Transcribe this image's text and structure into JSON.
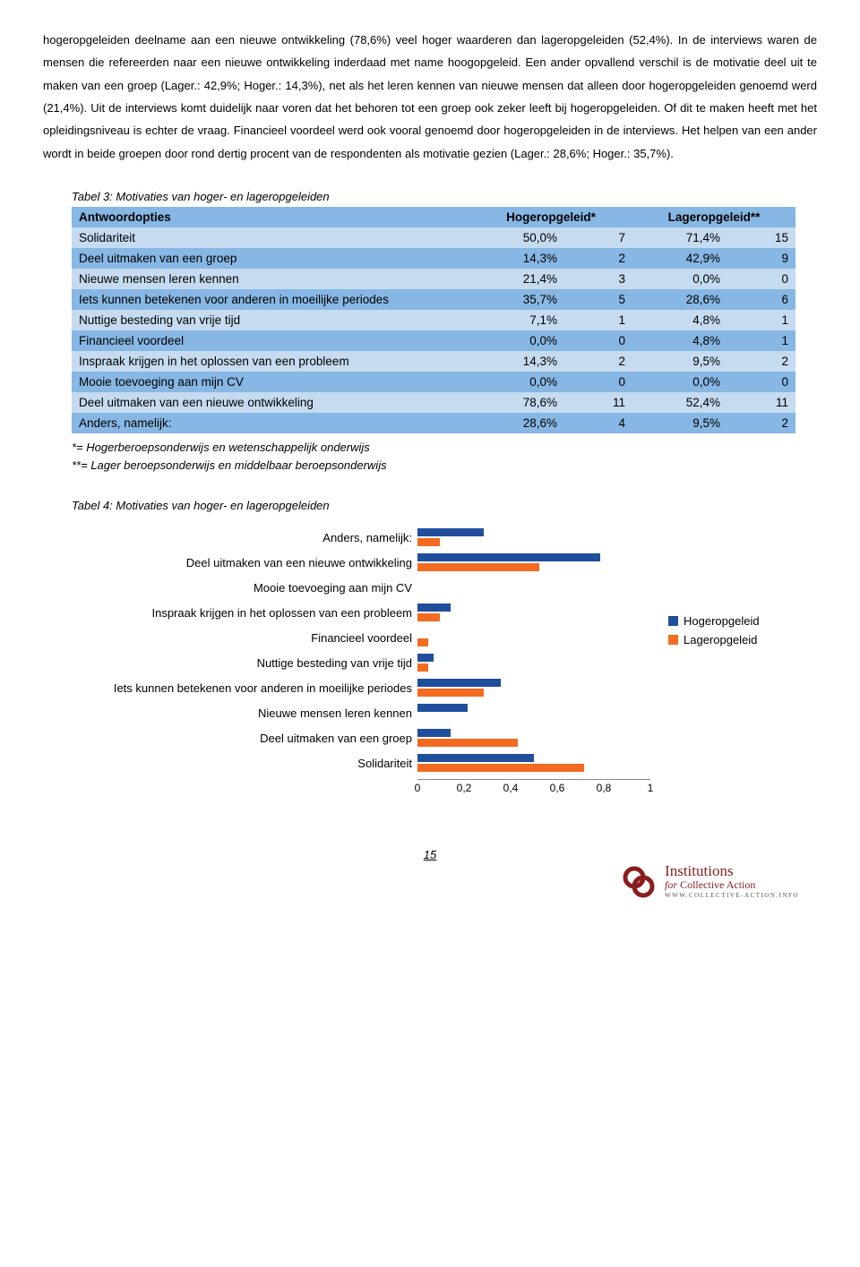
{
  "colors": {
    "table_header_bg": "#87b7e4",
    "table_row_dark": "#87b7e4",
    "table_row_light": "#c6dbf0",
    "bar_blue": "#1f4e9c",
    "bar_orange": "#f26b21",
    "logo_color": "#8a1e1e"
  },
  "body_paragraph": "hogeropgeleiden deelname aan een nieuwe ontwikkeling (78,6%) veel hoger waarderen dan lageropgeleiden (52,4%). In de interviews waren de mensen die refereerden naar een nieuwe ontwikkeling inderdaad met name hoogopgeleid. Een ander opvallend verschil is de motivatie deel uit te maken van een groep (Lager.: 42,9%; Hoger.: 14,3%), net als het leren kennen van nieuwe mensen dat alleen door hogeropgeleiden genoemd werd (21,4%). Uit de interviews komt duidelijk naar voren dat het behoren tot een groep ook zeker leeft bij hogeropgeleiden. Of dit te maken heeft met het opleidingsniveau is echter de vraag. Financieel voordeel werd ook vooral genoemd door hogeropgeleiden in de interviews. Het helpen van een ander wordt in beide groepen door rond dertig procent van de respondenten als motivatie gezien (Lager.: 28,6%; Hoger.: 35,7%).",
  "table3": {
    "caption": "Tabel 3: Motivaties van hoger- en lageropgeleiden",
    "headers": {
      "col0": "Antwoordopties",
      "col1": "Hogeropgeleid*",
      "col2": "Lageropgeleid**"
    },
    "rows": [
      {
        "shade": "light",
        "label": "Solidariteit",
        "h_pct": "50,0%",
        "h_n": "7",
        "l_pct": "71,4%",
        "l_n": "15"
      },
      {
        "shade": "dark",
        "label": "Deel uitmaken van een groep",
        "h_pct": "14,3%",
        "h_n": "2",
        "l_pct": "42,9%",
        "l_n": "9"
      },
      {
        "shade": "light",
        "label": "Nieuwe mensen leren kennen",
        "h_pct": "21,4%",
        "h_n": "3",
        "l_pct": "0,0%",
        "l_n": "0"
      },
      {
        "shade": "dark",
        "label": "Iets kunnen betekenen voor anderen in moeilijke periodes",
        "h_pct": "35,7%",
        "h_n": "5",
        "l_pct": "28,6%",
        "l_n": "6"
      },
      {
        "shade": "light",
        "label": "Nuttige besteding van vrije tijd",
        "h_pct": "7,1%",
        "h_n": "1",
        "l_pct": "4,8%",
        "l_n": "1"
      },
      {
        "shade": "dark",
        "label": "Financieel voordeel",
        "h_pct": "0,0%",
        "h_n": "0",
        "l_pct": "4,8%",
        "l_n": "1"
      },
      {
        "shade": "light",
        "label": "Inspraak krijgen in het oplossen van een probleem",
        "h_pct": "14,3%",
        "h_n": "2",
        "l_pct": "9,5%",
        "l_n": "2"
      },
      {
        "shade": "dark",
        "label": "Mooie toevoeging aan mijn CV",
        "h_pct": "0,0%",
        "h_n": "0",
        "l_pct": "0,0%",
        "l_n": "0"
      },
      {
        "shade": "light",
        "label": "Deel uitmaken van een nieuwe ontwikkeling",
        "h_pct": "78,6%",
        "h_n": "11",
        "l_pct": "52,4%",
        "l_n": "11"
      },
      {
        "shade": "dark",
        "label": "Anders, namelijk:",
        "h_pct": "28,6%",
        "h_n": "4",
        "l_pct": "9,5%",
        "l_n": "2"
      }
    ],
    "footnote1": "*= Hogerberoepsonderwijs en wetenschappelijk onderwijs",
    "footnote2": "**= Lager beroepsonderwijs en middelbaar beroepsonderwijs"
  },
  "table4_caption": "Tabel 4: Motivaties van hoger- en lageropgeleiden",
  "chart": {
    "type": "grouped-horizontal-bar",
    "x_min": 0,
    "x_max": 1,
    "x_ticks": [
      "0",
      "0,2",
      "0,4",
      "0,6",
      "0,8",
      "1"
    ],
    "series_names": {
      "hoger": "Hogeropgeleid",
      "lager": "Lageropgeleid"
    },
    "series_colors": {
      "hoger": "#1f4e9c",
      "lager": "#f26b21"
    },
    "rows": [
      {
        "label": "Anders, namelijk:",
        "hoger": 0.286,
        "lager": 0.095
      },
      {
        "label": "Deel uitmaken van een nieuwe ontwikkeling",
        "hoger": 0.786,
        "lager": 0.524
      },
      {
        "label": "Mooie toevoeging aan mijn CV",
        "hoger": 0.0,
        "lager": 0.0
      },
      {
        "label": "Inspraak krijgen in het oplossen van een probleem",
        "hoger": 0.143,
        "lager": 0.095
      },
      {
        "label": "Financieel voordeel",
        "hoger": 0.0,
        "lager": 0.048
      },
      {
        "label": "Nuttige besteding van vrije tijd",
        "hoger": 0.071,
        "lager": 0.048
      },
      {
        "label": "Iets kunnen betekenen voor anderen in moeilijke periodes",
        "hoger": 0.357,
        "lager": 0.286
      },
      {
        "label": "Nieuwe mensen leren kennen",
        "hoger": 0.214,
        "lager": 0.0
      },
      {
        "label": "Deel uitmaken van een groep",
        "hoger": 0.143,
        "lager": 0.429
      },
      {
        "label": "Solidariteit",
        "hoger": 0.5,
        "lager": 0.714
      }
    ]
  },
  "page_number": "15",
  "logo": {
    "line1": "Institutions",
    "line2_prefix": "for ",
    "line2": "Collective Action",
    "line3": "WWW.COLLECTIVE-ACTION.INFO"
  }
}
